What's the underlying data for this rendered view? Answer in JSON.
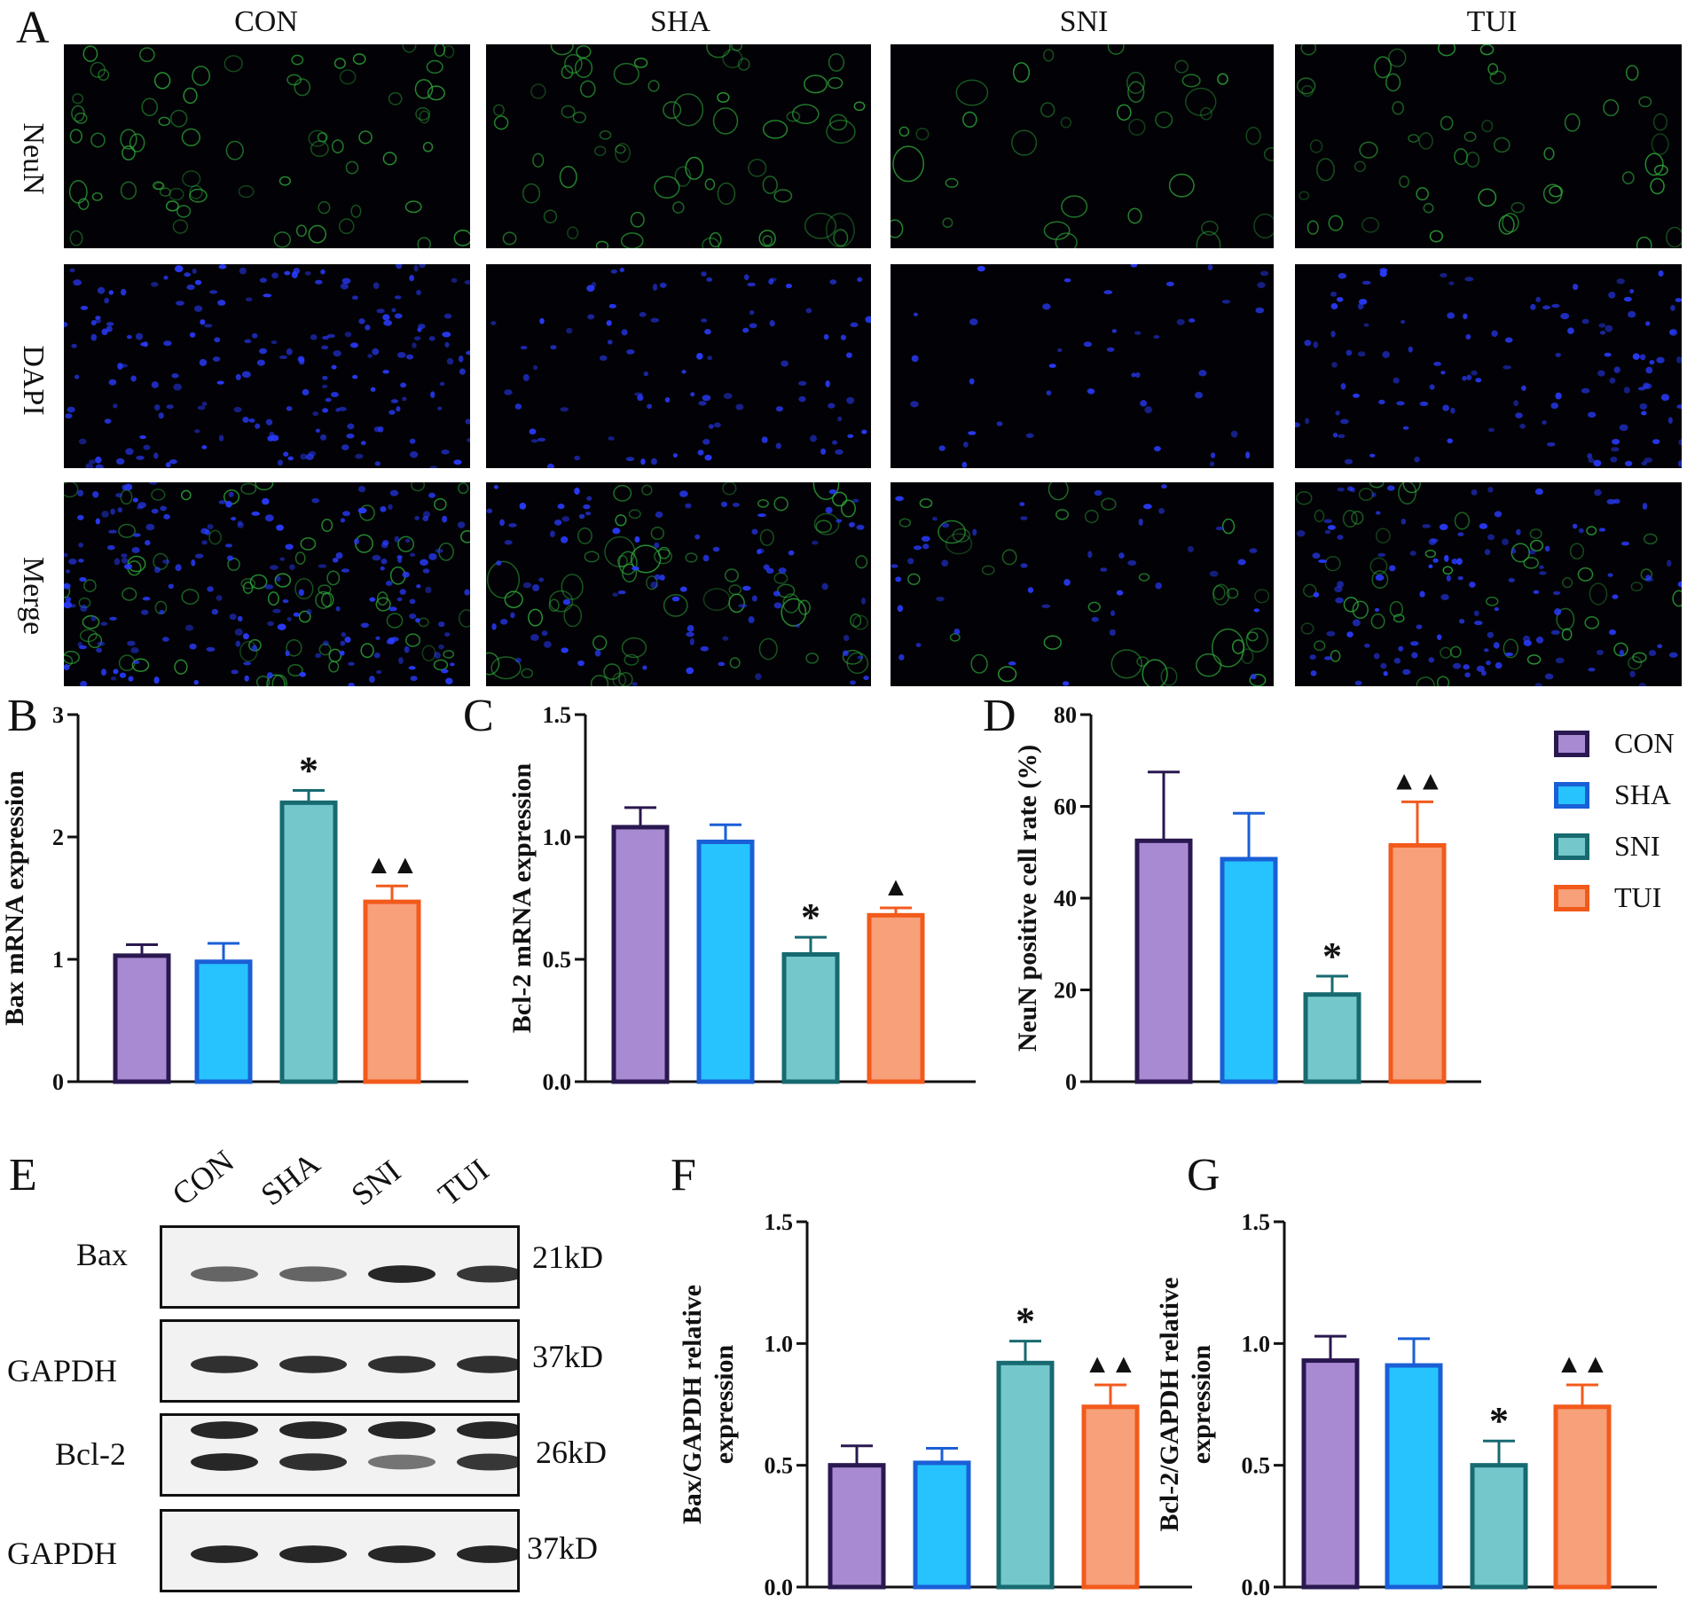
{
  "panels": {
    "A": "A",
    "B": "B",
    "C": "C",
    "D": "D",
    "E": "E",
    "F": "F",
    "G": "G"
  },
  "micrograph": {
    "columns": [
      "CON",
      "SHA",
      "SNI",
      "TUI"
    ],
    "rows": [
      "NeuN",
      "DAPI",
      "Merge"
    ],
    "colors": {
      "neun": "#2faa3a",
      "dapi": "#2a3cff"
    }
  },
  "groups": [
    "CON",
    "SHA",
    "SNI",
    "TUI"
  ],
  "colors": {
    "fills": [
      "#a88ad2",
      "#27c3ff",
      "#74c8cc",
      "#f7a07a"
    ],
    "strokes": [
      "#2a1850",
      "#1a5fd6",
      "#176a70",
      "#f25a1c"
    ]
  },
  "chart_data": [
    {
      "type": "bar",
      "panel": "B",
      "categories": [
        "CON",
        "SHA",
        "SNI",
        "TUI"
      ],
      "values": [
        1.03,
        0.98,
        2.28,
        1.47
      ],
      "errors": [
        0.09,
        0.15,
        0.1,
        0.13
      ],
      "ylabel": "Bax mRNA expression",
      "ylim": [
        0,
        3
      ],
      "yticks": [
        0,
        1,
        2,
        3
      ],
      "ytick_labels": [
        "0",
        "1",
        "2",
        "3"
      ],
      "markers": [
        "",
        "",
        "*",
        "▲▲"
      ]
    },
    {
      "type": "bar",
      "panel": "C",
      "categories": [
        "CON",
        "SHA",
        "SNI",
        "TUI"
      ],
      "values": [
        1.04,
        0.98,
        0.52,
        0.68
      ],
      "errors": [
        0.08,
        0.07,
        0.07,
        0.03
      ],
      "ylabel": "Bcl-2 mRNA expression",
      "ylim": [
        0,
        1.5
      ],
      "yticks": [
        0,
        0.5,
        1.0,
        1.5
      ],
      "ytick_labels": [
        "0.0",
        "0.5",
        "1.0",
        "1.5"
      ],
      "markers": [
        "",
        "",
        "*",
        "▲"
      ]
    },
    {
      "type": "bar",
      "panel": "D",
      "categories": [
        "CON",
        "SHA",
        "SNI",
        "TUI"
      ],
      "values": [
        52.5,
        48.5,
        19,
        51.5
      ],
      "errors": [
        15,
        10,
        4,
        9.5
      ],
      "ylabel": "NeuN positive cell rate (%)",
      "ylim": [
        0,
        80
      ],
      "yticks": [
        0,
        20,
        40,
        60,
        80
      ],
      "ytick_labels": [
        "0",
        "20",
        "40",
        "60",
        "80"
      ],
      "markers": [
        "",
        "",
        "*",
        "▲▲"
      ]
    },
    {
      "type": "bar",
      "panel": "F",
      "categories": [
        "CON",
        "SHA",
        "SNI",
        "TUI"
      ],
      "values": [
        0.5,
        0.51,
        0.92,
        0.74
      ],
      "errors": [
        0.08,
        0.06,
        0.09,
        0.09
      ],
      "ylabel_lines": [
        "Bax/GAPDH relative",
        "expression"
      ],
      "ylim": [
        0,
        1.5
      ],
      "yticks": [
        0,
        0.5,
        1.0,
        1.5
      ],
      "ytick_labels": [
        "0.0",
        "0.5",
        "1.0",
        "1.5"
      ],
      "markers": [
        "",
        "",
        "*",
        "▲▲"
      ]
    },
    {
      "type": "bar",
      "panel": "G",
      "categories": [
        "CON",
        "SHA",
        "SNI",
        "TUI"
      ],
      "values": [
        0.93,
        0.91,
        0.5,
        0.74
      ],
      "errors": [
        0.1,
        0.11,
        0.1,
        0.09
      ],
      "ylabel_lines": [
        "Bcl-2/GAPDH relative",
        "expression"
      ],
      "ylim": [
        0,
        1.5
      ],
      "yticks": [
        0,
        0.5,
        1.0,
        1.5
      ],
      "ytick_labels": [
        "0.0",
        "0.5",
        "1.0",
        "1.5"
      ],
      "markers": [
        "",
        "",
        "*",
        "▲▲"
      ]
    }
  ],
  "western": {
    "lanes": [
      "CON",
      "SHA",
      "SNI",
      "TUI"
    ],
    "blots": [
      {
        "label": "Bax",
        "kd": "21kD",
        "intensity": [
          0.55,
          0.55,
          0.95,
          0.85
        ],
        "bands": 1
      },
      {
        "label": "GAPDH",
        "kd": "37kD",
        "intensity": [
          0.9,
          0.9,
          0.9,
          0.9
        ],
        "bands": 1
      },
      {
        "label": "Bcl-2",
        "kd": "26kD",
        "intensity": [
          0.95,
          0.9,
          0.45,
          0.85
        ],
        "bands": 2
      },
      {
        "label": "GAPDH",
        "kd": "37kD",
        "intensity": [
          0.95,
          0.95,
          0.95,
          0.95
        ],
        "bands": 1
      }
    ]
  }
}
